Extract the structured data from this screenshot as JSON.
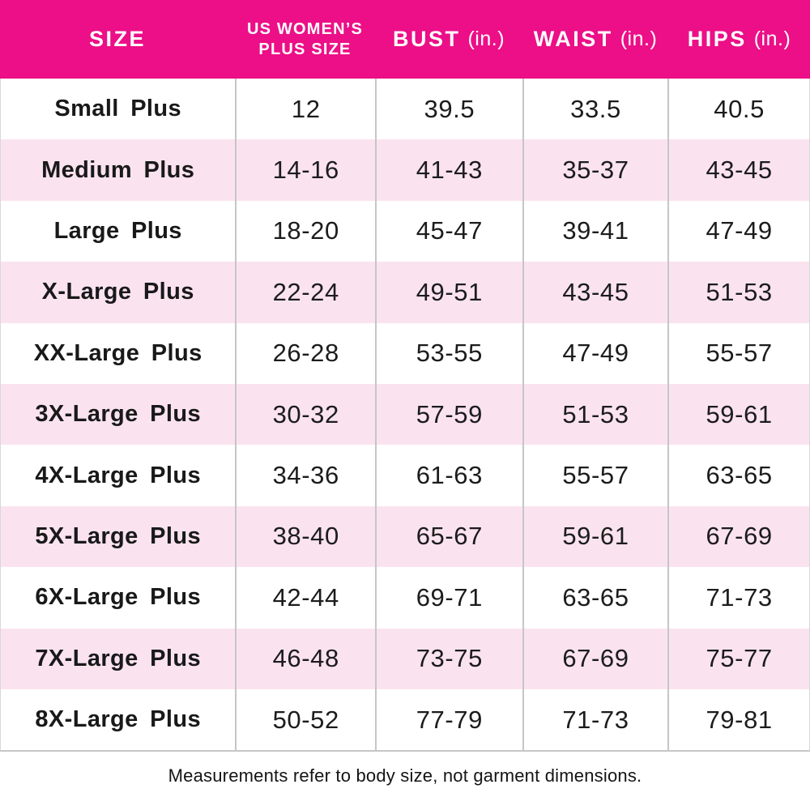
{
  "chart_data": {
    "type": "table",
    "columns": [
      {
        "id": "size",
        "bold": "SIZE",
        "light": ""
      },
      {
        "id": "us_plus_size",
        "bold": "US WOMEN’S",
        "line2": "PLUS SIZE",
        "light": ""
      },
      {
        "id": "bust",
        "bold": "BUST",
        "light": "(in.)"
      },
      {
        "id": "waist",
        "bold": "WAIST",
        "light": "(in.)"
      },
      {
        "id": "hips",
        "bold": "HIPS",
        "light": "(in.)"
      }
    ],
    "rows": [
      {
        "size": "Small Plus",
        "us_plus_size": "12",
        "bust": "39.5",
        "waist": "33.5",
        "hips": "40.5"
      },
      {
        "size": "Medium Plus",
        "us_plus_size": "14-16",
        "bust": "41-43",
        "waist": "35-37",
        "hips": "43-45"
      },
      {
        "size": "Large Plus",
        "us_plus_size": "18-20",
        "bust": "45-47",
        "waist": "39-41",
        "hips": "47-49"
      },
      {
        "size": "X-Large Plus",
        "us_plus_size": "22-24",
        "bust": "49-51",
        "waist": "43-45",
        "hips": "51-53"
      },
      {
        "size": "XX-Large Plus",
        "us_plus_size": "26-28",
        "bust": "53-55",
        "waist": "47-49",
        "hips": "55-57"
      },
      {
        "size": "3X-Large Plus",
        "us_plus_size": "30-32",
        "bust": "57-59",
        "waist": "51-53",
        "hips": "59-61"
      },
      {
        "size": "4X-Large Plus",
        "us_plus_size": "34-36",
        "bust": "61-63",
        "waist": "55-57",
        "hips": "63-65"
      },
      {
        "size": "5X-Large Plus",
        "us_plus_size": "38-40",
        "bust": "65-67",
        "waist": "59-61",
        "hips": "67-69"
      },
      {
        "size": "6X-Large Plus",
        "us_plus_size": "42-44",
        "bust": "69-71",
        "waist": "63-65",
        "hips": "71-73"
      },
      {
        "size": "7X-Large Plus",
        "us_plus_size": "46-48",
        "bust": "73-75",
        "waist": "67-69",
        "hips": "75-77"
      },
      {
        "size": "8X-Large Plus",
        "us_plus_size": "50-52",
        "bust": "77-79",
        "waist": "71-73",
        "hips": "79-81"
      }
    ],
    "footnote": "Measurements refer to body size, not garment dimensions.",
    "layout_hints": {
      "grid": "off",
      "alternating_row_shading": "on"
    }
  },
  "colors": {
    "header_bg": "#EC0F87",
    "header_text": "#FFFFFF",
    "row_bg": "#FFFFFF",
    "row_alt_bg": "#FAE3EF",
    "divider": "#C6C6C6",
    "text": "#191919"
  }
}
